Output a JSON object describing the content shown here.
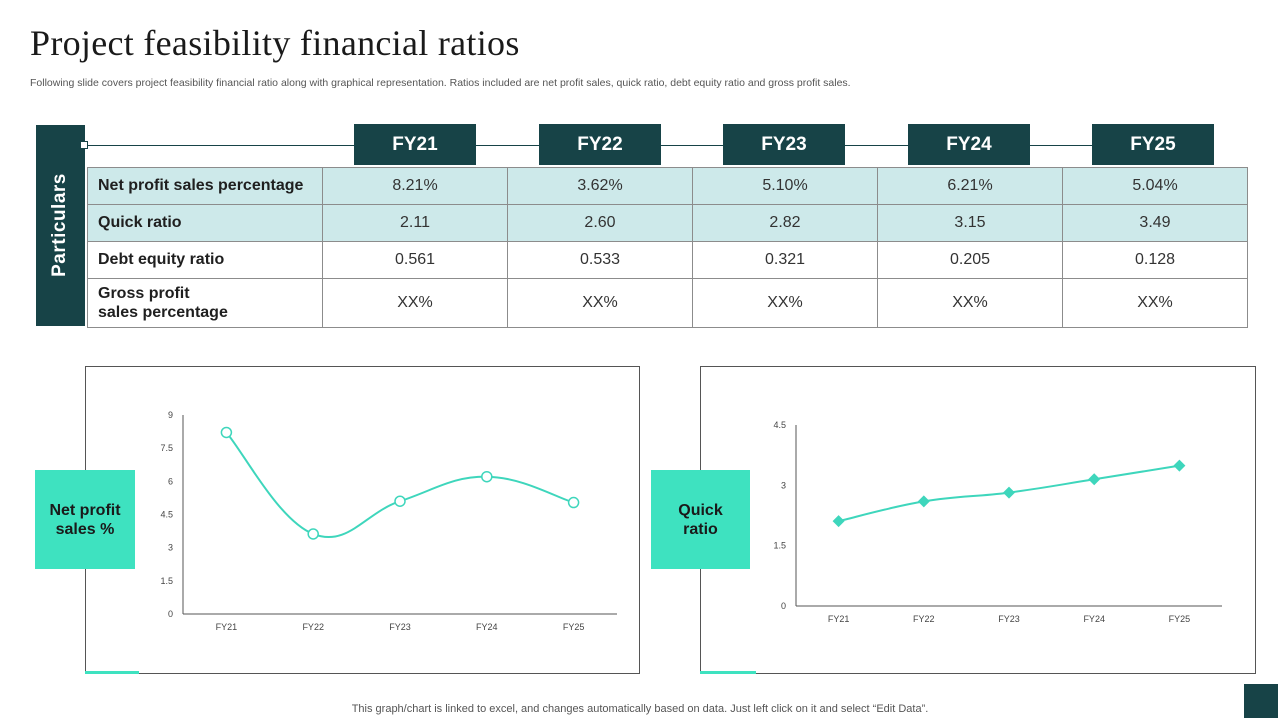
{
  "title": "Project feasibility financial ratios",
  "subtitle": "Following slide covers project feasibility financial ratio along with graphical representation. Ratios included are net profit sales, quick ratio, debt equity ratio and gross profit sales.",
  "particulars_label": "Particulars",
  "years": [
    "FY21",
    "FY22",
    "FY23",
    "FY24",
    "FY25"
  ],
  "rows": [
    {
      "label": "Net profit sales percentage",
      "values": [
        "8.21%",
        "3.62%",
        "5.10%",
        "6.21%",
        "5.04%"
      ]
    },
    {
      "label": "Quick ratio",
      "values": [
        "2.11",
        "2.60",
        "2.82",
        "3.15",
        "3.49"
      ]
    },
    {
      "label": "Debt equity ratio",
      "values": [
        "0.561",
        "0.533",
        "0.321",
        "0.205",
        "0.128"
      ]
    },
    {
      "label": "Gross profit\nsales percentage",
      "values": [
        "XX%",
        "XX%",
        "XX%",
        "XX%",
        "XX%"
      ]
    }
  ],
  "chart_data": [
    {
      "type": "line",
      "title": "Net profit sales %",
      "categories": [
        "FY21",
        "FY22",
        "FY23",
        "FY24",
        "FY25"
      ],
      "values": [
        8.21,
        3.62,
        5.1,
        6.21,
        5.04
      ],
      "yticks": [
        "0",
        "1.5",
        "3",
        "4.5",
        "6",
        "7.5",
        "9"
      ],
      "ylim": [
        0,
        9
      ],
      "marker": "circle",
      "smooth": true,
      "color": "#3ed6bc"
    },
    {
      "type": "line",
      "title": "Quick ratio",
      "categories": [
        "FY21",
        "FY22",
        "FY23",
        "FY24",
        "FY25"
      ],
      "values": [
        2.11,
        2.6,
        2.82,
        3.15,
        3.49
      ],
      "yticks": [
        "0",
        "1.5",
        "3",
        "4.5"
      ],
      "ylim": [
        0,
        4.5
      ],
      "marker": "diamond",
      "smooth": true,
      "color": "#3ed6bc"
    }
  ],
  "chart_tags": [
    "Net profit\nsales %",
    "Quick\nratio"
  ],
  "footer": "This graph/chart is linked to excel,  and changes automatically based on data. Just left click on it and select “Edit Data”.",
  "colors": {
    "dark": "#174347",
    "accent": "#3ee2c0",
    "shade": "#cde9ea"
  }
}
